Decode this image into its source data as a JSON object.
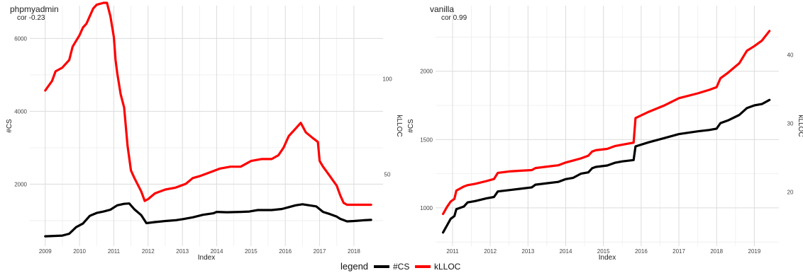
{
  "chart_data": [
    {
      "type": "line",
      "title": "phpmyadmin",
      "annotation": "cor -0.23",
      "xlabel": "Index",
      "ylabel": "#CS",
      "y2label": "kLLOC",
      "grid": true,
      "x_ticks": [
        2009,
        2010,
        2011,
        2012,
        2013,
        2014,
        2015,
        2016,
        2017,
        2018
      ],
      "y_ticks": [
        2000,
        4000,
        6000
      ],
      "y2_ticks": [
        50,
        100
      ],
      "xlim": [
        2008.55,
        2018.85
      ],
      "ylim": [
        300,
        6900
      ],
      "y2lim": [
        12.3,
        138.5
      ],
      "series": [
        {
          "name": "#CS",
          "axis": "left",
          "color": "#000000",
          "x": [
            2009.0,
            2009.5,
            2009.7,
            2009.9,
            2010.1,
            2010.3,
            2010.5,
            2010.7,
            2010.9,
            2011.1,
            2011.3,
            2011.45,
            2011.6,
            2011.8,
            2011.95,
            2012.2,
            2012.5,
            2012.8,
            2013.0,
            2013.3,
            2013.6,
            2013.9,
            2014.0,
            2014.3,
            2014.7,
            2014.95,
            2015.2,
            2015.6,
            2015.9,
            2016.1,
            2016.3,
            2016.5,
            2016.7,
            2016.9,
            2017.1,
            2017.3,
            2017.5,
            2017.6,
            2017.8,
            2018.0,
            2018.3,
            2018.5
          ],
          "values": [
            570,
            590,
            640,
            820,
            920,
            1130,
            1210,
            1250,
            1300,
            1420,
            1460,
            1470,
            1310,
            1150,
            930,
            960,
            990,
            1010,
            1040,
            1090,
            1160,
            1200,
            1240,
            1230,
            1240,
            1250,
            1290,
            1290,
            1320,
            1370,
            1420,
            1450,
            1420,
            1390,
            1240,
            1180,
            1110,
            1050,
            980,
            990,
            1010,
            1020
          ]
        },
        {
          "name": "kLLOC",
          "axis": "right",
          "color": "#ff0000",
          "x": [
            2009.0,
            2009.2,
            2009.3,
            2009.5,
            2009.7,
            2009.8,
            2010.0,
            2010.1,
            2010.2,
            2010.3,
            2010.4,
            2010.5,
            2010.7,
            2010.8,
            2010.9,
            2011.0,
            2011.05,
            2011.1,
            2011.2,
            2011.3,
            2011.4,
            2011.5,
            2011.6,
            2011.8,
            2011.9,
            2012.0,
            2012.2,
            2012.5,
            2012.8,
            2013.1,
            2013.3,
            2013.5,
            2013.8,
            2014.1,
            2014.4,
            2014.7,
            2014.9,
            2015.0,
            2015.3,
            2015.6,
            2015.8,
            2015.95,
            2016.1,
            2016.3,
            2016.45,
            2016.6,
            2016.8,
            2016.95,
            2017.0,
            2017.1,
            2017.3,
            2017.5,
            2017.6,
            2017.7,
            2017.8,
            2018.0,
            2018.5
          ],
          "values": [
            94,
            99,
            104,
            106,
            110,
            117,
            123,
            127,
            129,
            133,
            137,
            139,
            140,
            140,
            133,
            122,
            110,
            103,
            92,
            85,
            65,
            52,
            48,
            41,
            36,
            37,
            40,
            42,
            43,
            45,
            48,
            49,
            51,
            53,
            54,
            54,
            56,
            57,
            58,
            58,
            60,
            64,
            70,
            74,
            77,
            72,
            69,
            67,
            57,
            54,
            49,
            44,
            39,
            35,
            34,
            34,
            34
          ]
        }
      ]
    },
    {
      "type": "line",
      "title": "vanilla",
      "annotation": "cor 0.99",
      "xlabel": "Index",
      "ylabel": "#CS",
      "y2label": "kLLOC",
      "grid": true,
      "x_ticks": [
        2011,
        2012,
        2013,
        2014,
        2015,
        2016,
        2017,
        2018,
        2019
      ],
      "y_ticks": [
        1000,
        1500,
        2000
      ],
      "y2_ticks": [
        20,
        30,
        40
      ],
      "xlim": [
        2010.55,
        2019.65
      ],
      "ylim": [
        720,
        2480
      ],
      "y2lim": [
        12.1,
        47.2
      ],
      "series": [
        {
          "name": "#CS",
          "axis": "left",
          "color": "#000000",
          "x": [
            2010.75,
            2010.85,
            2010.95,
            2011.05,
            2011.1,
            2011.3,
            2011.4,
            2011.6,
            2011.9,
            2012.1,
            2012.2,
            2012.5,
            2012.8,
            2013.1,
            2013.2,
            2013.5,
            2013.8,
            2014.0,
            2014.2,
            2014.4,
            2014.6,
            2014.7,
            2014.8,
            2015.1,
            2015.3,
            2015.5,
            2015.8,
            2015.85,
            2016.2,
            2016.6,
            2017.0,
            2017.5,
            2017.8,
            2018.0,
            2018.1,
            2018.3,
            2018.6,
            2018.8,
            2019.0,
            2019.2,
            2019.4
          ],
          "values": [
            820,
            870,
            920,
            940,
            990,
            1010,
            1040,
            1050,
            1070,
            1080,
            1120,
            1130,
            1140,
            1150,
            1170,
            1180,
            1190,
            1210,
            1220,
            1250,
            1260,
            1290,
            1300,
            1310,
            1330,
            1340,
            1350,
            1450,
            1480,
            1510,
            1540,
            1560,
            1570,
            1580,
            1620,
            1640,
            1680,
            1730,
            1750,
            1760,
            1790
          ]
        },
        {
          "name": "kLLOC",
          "axis": "right",
          "color": "#ff0000",
          "x": [
            2010.75,
            2010.85,
            2010.95,
            2011.05,
            2011.1,
            2011.3,
            2011.4,
            2011.6,
            2011.9,
            2012.1,
            2012.2,
            2012.5,
            2012.8,
            2013.1,
            2013.2,
            2013.5,
            2013.8,
            2014.0,
            2014.2,
            2014.4,
            2014.6,
            2014.7,
            2014.8,
            2015.1,
            2015.3,
            2015.5,
            2015.8,
            2015.85,
            2016.2,
            2016.6,
            2017.0,
            2017.5,
            2017.8,
            2018.0,
            2018.1,
            2018.3,
            2018.6,
            2018.8,
            2019.0,
            2019.2,
            2019.4
          ],
          "values": [
            16.8,
            17.8,
            18.6,
            19.0,
            20.2,
            20.8,
            21.0,
            21.2,
            21.6,
            21.9,
            22.8,
            23.0,
            23.1,
            23.2,
            23.5,
            23.7,
            23.9,
            24.3,
            24.6,
            24.9,
            25.3,
            25.9,
            26.1,
            26.3,
            26.7,
            26.9,
            27.2,
            30.8,
            31.7,
            32.6,
            33.7,
            34.4,
            34.9,
            35.3,
            36.6,
            37.4,
            38.8,
            40.6,
            41.3,
            42.1,
            43.5
          ]
        }
      ]
    }
  ],
  "legend": {
    "title": "legend",
    "items": [
      {
        "label": "#CS",
        "color": "#000000"
      },
      {
        "label": "kLLOC",
        "color": "#ff0000"
      }
    ]
  }
}
